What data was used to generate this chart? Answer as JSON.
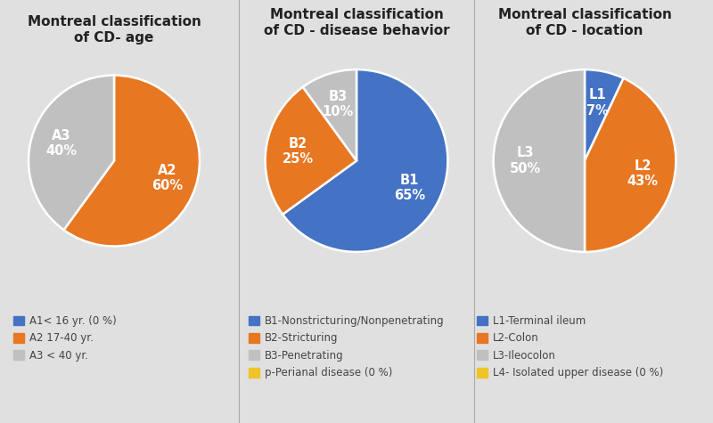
{
  "background_color": "#e0e0e0",
  "charts": [
    {
      "title": "Montreal classification\nof CD- age",
      "values": [
        60,
        40
      ],
      "colors": [
        "#e87722",
        "#c0c0c0"
      ],
      "labels": [
        "A2\n60%",
        "A3\n40%"
      ],
      "legend_labels": [
        "A1< 16 yr. (0 %)",
        "A2 17-40 yr.",
        "A3 < 40 yr."
      ],
      "legend_colors": [
        "#4472c4",
        "#e87722",
        "#c0c0c0"
      ],
      "startangle": 90
    },
    {
      "title": "Montreal classification\nof CD - disease behavior",
      "values": [
        65,
        25,
        10
      ],
      "colors": [
        "#4472c4",
        "#e87722",
        "#c0c0c0"
      ],
      "labels": [
        "B1\n65%",
        "B2\n25%",
        "B3\n10%"
      ],
      "legend_labels": [
        "B1-Nonstricturing/Nonpenetrating",
        "B2-Stricturing",
        "B3-Penetrating",
        "p-Perianal disease (0 %)"
      ],
      "legend_colors": [
        "#4472c4",
        "#e87722",
        "#c0c0c0",
        "#f0c428"
      ],
      "startangle": 90
    },
    {
      "title": "Montreal classification\nof CD - location",
      "values": [
        7,
        43,
        50
      ],
      "colors": [
        "#4472c4",
        "#e87722",
        "#c0c0c0"
      ],
      "labels": [
        "L1\n7%",
        "L2\n43%",
        "L3\n50%"
      ],
      "legend_labels": [
        "L1-Terminal ileum",
        "L2-Colon",
        "L3-Ileocolon",
        "L4- Isolated upper disease (0 %)"
      ],
      "legend_colors": [
        "#4472c4",
        "#e87722",
        "#c0c0c0",
        "#f0c428"
      ],
      "startangle": 90
    }
  ],
  "title_fontsize": 11,
  "label_fontsize": 10.5,
  "legend_fontsize": 8.5
}
